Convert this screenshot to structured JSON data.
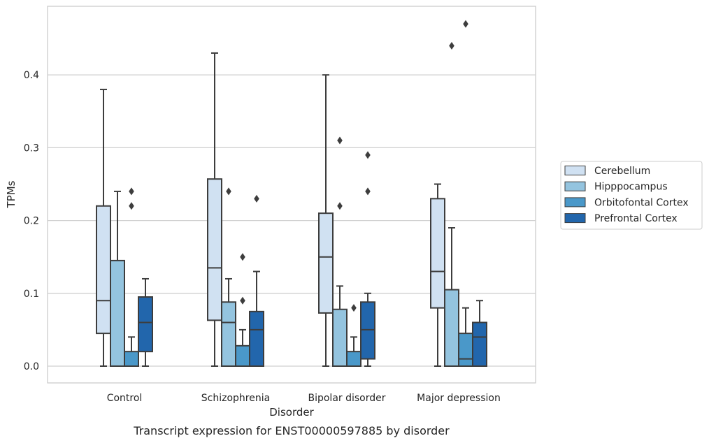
{
  "chart_data": {
    "type": "box",
    "title": "",
    "caption": "Transcript expression for ENST00000597885 by disorder",
    "xlabel": "Disorder",
    "ylabel": "TPMs",
    "ylim": [
      -0.023,
      0.495
    ],
    "yticks": [
      0.0,
      0.1,
      0.2,
      0.3,
      0.4
    ],
    "ytick_labels": [
      "0.0",
      "0.1",
      "0.2",
      "0.3",
      "0.4"
    ],
    "grid": "horizontal",
    "legend_position": "right",
    "categories": [
      "Control",
      "Schizophrenia",
      "Bipolar disorder",
      "Major depression"
    ],
    "series": [
      {
        "name": "Cerebellum",
        "color": "#d0e1f2",
        "boxes": [
          {
            "min": 0.0,
            "q1": 0.045,
            "median": 0.09,
            "q3": 0.22,
            "max": 0.38,
            "outliers": []
          },
          {
            "min": 0.0,
            "q1": 0.063,
            "median": 0.135,
            "q3": 0.257,
            "max": 0.43,
            "outliers": []
          },
          {
            "min": 0.0,
            "q1": 0.073,
            "median": 0.15,
            "q3": 0.21,
            "max": 0.4,
            "outliers": []
          },
          {
            "min": 0.0,
            "q1": 0.08,
            "median": 0.13,
            "q3": 0.23,
            "max": 0.25,
            "outliers": []
          }
        ]
      },
      {
        "name": "Hipppocampus",
        "color": "#94c4df",
        "boxes": [
          {
            "min": 0.0,
            "q1": 0.0,
            "median": 0.0,
            "q3": 0.145,
            "max": 0.24,
            "outliers": []
          },
          {
            "min": 0.0,
            "q1": 0.0,
            "median": 0.06,
            "q3": 0.088,
            "max": 0.12,
            "outliers": [
              0.24
            ]
          },
          {
            "min": 0.0,
            "q1": 0.0,
            "median": 0.0,
            "q3": 0.078,
            "max": 0.11,
            "outliers": [
              0.22,
              0.31
            ]
          },
          {
            "min": 0.0,
            "q1": 0.0,
            "median": 0.0,
            "q3": 0.105,
            "max": 0.19,
            "outliers": [
              0.44
            ]
          }
        ]
      },
      {
        "name": "Orbitofontal Cortex",
        "color": "#4a98c9",
        "boxes": [
          {
            "min": 0.0,
            "q1": 0.0,
            "median": 0.0,
            "q3": 0.02,
            "max": 0.04,
            "outliers": [
              0.22,
              0.24
            ]
          },
          {
            "min": 0.0,
            "q1": 0.0,
            "median": 0.0,
            "q3": 0.028,
            "max": 0.05,
            "outliers": [
              0.09,
              0.15
            ]
          },
          {
            "min": 0.0,
            "q1": 0.0,
            "median": 0.0,
            "q3": 0.02,
            "max": 0.04,
            "outliers": [
              0.08
            ]
          },
          {
            "min": 0.0,
            "q1": 0.0,
            "median": 0.01,
            "q3": 0.045,
            "max": 0.08,
            "outliers": [
              0.47
            ]
          }
        ]
      },
      {
        "name": "Prefrontal Cortex",
        "color": "#2266ac",
        "boxes": [
          {
            "min": 0.0,
            "q1": 0.02,
            "median": 0.06,
            "q3": 0.095,
            "max": 0.12,
            "outliers": []
          },
          {
            "min": 0.0,
            "q1": 0.0,
            "median": 0.05,
            "q3": 0.075,
            "max": 0.13,
            "outliers": [
              0.23
            ]
          },
          {
            "min": 0.0,
            "q1": 0.01,
            "median": 0.05,
            "q3": 0.088,
            "max": 0.1,
            "outliers": [
              0.24,
              0.29
            ]
          },
          {
            "min": 0.0,
            "q1": 0.0,
            "median": 0.04,
            "q3": 0.06,
            "max": 0.09,
            "outliers": []
          }
        ]
      }
    ]
  }
}
